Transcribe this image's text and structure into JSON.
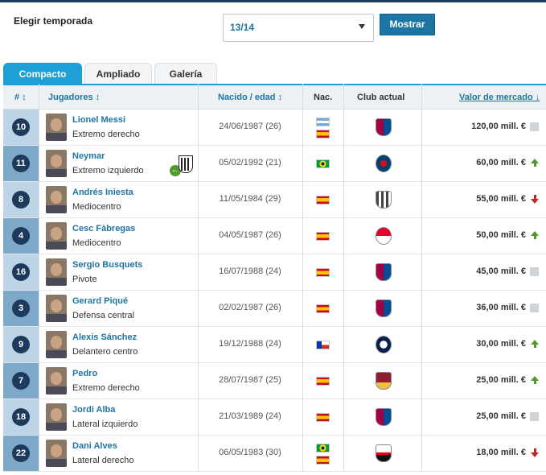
{
  "season": {
    "label": "Elegir temporada",
    "selected": "13/14",
    "button": "Mostrar"
  },
  "tabs": [
    "Compacto",
    "Ampliado",
    "Galería"
  ],
  "columns": {
    "num": "#",
    "players": "Jugadores",
    "born": "Nacido / edad",
    "nat": "Nac.",
    "club": "Club actual",
    "value": "Valor de mercado"
  },
  "colors": {
    "accent": "#1ea0d6",
    "link": "#1d75a3",
    "navy": "#1d3a5c",
    "up": "#4f9a2a",
    "down": "#c0282d"
  },
  "rows": [
    {
      "num": "10",
      "name": "Lionel Messi",
      "position": "Extremo derecho",
      "dob": "24/06/1987 (26)",
      "flags": [
        "argentina",
        "spain"
      ],
      "club": "barcelona-crest",
      "value": "120,00 mill. €",
      "trend": "same"
    },
    {
      "num": "11",
      "name": "Neymar",
      "position": "Extremo izquierdo",
      "dob": "05/02/1992 (21)",
      "flags": [
        "brazil"
      ],
      "club": "psg-crest",
      "value": "60,00 mill. €",
      "trend": "up"
    },
    {
      "num": "8",
      "name": "Andrés Iniesta",
      "position": "Mediocentro",
      "dob": "11/05/1984 (29)",
      "flags": [
        "spain"
      ],
      "club": "vissel-kobe-crest",
      "value": "55,00 mill. €",
      "trend": "down"
    },
    {
      "num": "4",
      "name": "Cesc Fàbregas",
      "position": "Mediocentro",
      "dob": "04/05/1987 (26)",
      "flags": [
        "spain"
      ],
      "club": "monaco-crest",
      "value": "50,00 mill. €",
      "trend": "up"
    },
    {
      "num": "16",
      "name": "Sergio Busquets",
      "position": "Pivote",
      "dob": "16/07/1988 (24)",
      "flags": [
        "spain"
      ],
      "club": "barcelona-crest",
      "value": "45,00 mill. €",
      "trend": "same"
    },
    {
      "num": "3",
      "name": "Gerard Piqué",
      "position": "Defensa central",
      "dob": "02/02/1987 (26)",
      "flags": [
        "spain"
      ],
      "club": "barcelona-crest",
      "value": "36,00 mill. €",
      "trend": "same"
    },
    {
      "num": "9",
      "name": "Alexis Sánchez",
      "position": "Delantero centro",
      "dob": "19/12/1988 (24)",
      "flags": [
        "chile"
      ],
      "club": "inter-crest",
      "value": "30,00 mill. €",
      "trend": "up"
    },
    {
      "num": "7",
      "name": "Pedro",
      "position": "Extremo derecho",
      "dob": "28/07/1987 (25)",
      "flags": [
        "spain"
      ],
      "club": "roma-crest",
      "value": "25,00 mill. €",
      "trend": "up"
    },
    {
      "num": "18",
      "name": "Jordi Alba",
      "position": "Lateral izquierdo",
      "dob": "21/03/1989 (24)",
      "flags": [
        "spain"
      ],
      "club": "barcelona-crest",
      "value": "25,00 mill. €",
      "trend": "same"
    },
    {
      "num": "22",
      "name": "Dani Alves",
      "position": "Lateral derecho",
      "dob": "06/05/1983 (30)",
      "flags": [
        "brazil",
        "spain"
      ],
      "club": "sao-paulo-crest",
      "value": "18,00 mill. €",
      "trend": "down"
    }
  ]
}
